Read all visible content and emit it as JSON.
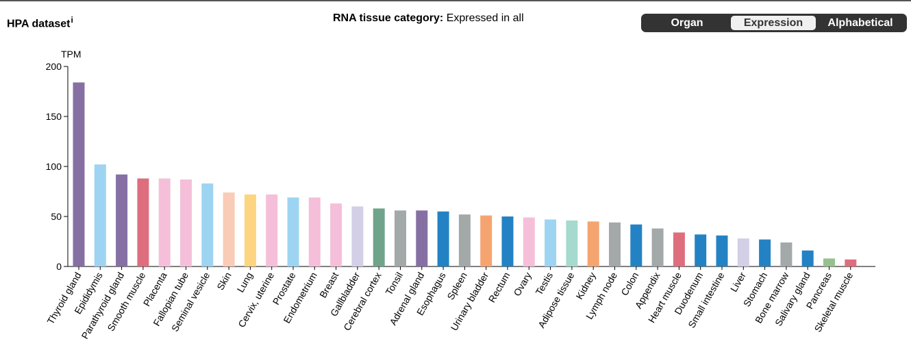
{
  "header": {
    "dataset_title": "HPA dataset",
    "info_marker": "i",
    "category_label": "RNA tissue category:",
    "category_value": "Expressed in all",
    "sort_options": [
      "Organ",
      "Expression",
      "Alphabetical"
    ],
    "active_sort": "Expression"
  },
  "colors": {
    "purple": "#8670a3",
    "light_blue": "#9dd4f2",
    "red": "#de6e7e",
    "pink": "#f5bfd9",
    "peach": "#f9ccb7",
    "yellow": "#fdd47f",
    "lavender": "#d3cfe6",
    "green": "#6fa48a",
    "gray": "#a3a8a9",
    "blue": "#2382c4",
    "orange": "#f5a470",
    "mint": "#a6dace",
    "light_green": "#96c18e"
  },
  "chart_data": {
    "type": "bar",
    "ylabel": "TPM",
    "ylim": [
      0,
      200
    ],
    "yticks": [
      0,
      50,
      100,
      150,
      200
    ],
    "categories": [
      "Thyroid gland",
      "Epididymis",
      "Parathyroid gland",
      "Smooth muscle",
      "Placenta",
      "Fallopian tube",
      "Seminal vesicle",
      "Skin",
      "Lung",
      "Cervix, uterine",
      "Prostate",
      "Endometrium",
      "Breast",
      "Gallbladder",
      "Cerebral cortex",
      "Tonsil",
      "Adrenal gland",
      "Esophagus",
      "Spleen",
      "Urinary bladder",
      "Rectum",
      "Ovary",
      "Testis",
      "Adipose tissue",
      "Kidney",
      "Lymph node",
      "Colon",
      "Appendix",
      "Heart muscle",
      "Duodenum",
      "Small intestine",
      "Liver",
      "Stomach",
      "Bone marrow",
      "Salivary gland",
      "Pancreas",
      "Skeletal muscle"
    ],
    "values": [
      184,
      102,
      92,
      88,
      88,
      87,
      83,
      74,
      72,
      72,
      69,
      69,
      63,
      60,
      58,
      56,
      56,
      55,
      52,
      51,
      50,
      49,
      47,
      46,
      45,
      44,
      42,
      38,
      34,
      32,
      31,
      28,
      27,
      24,
      16,
      8,
      7
    ],
    "bar_colors": [
      "#8670a3",
      "#9dd4f2",
      "#8670a3",
      "#de6e7e",
      "#f5bfd9",
      "#f5bfd9",
      "#9dd4f2",
      "#f9ccb7",
      "#fdd47f",
      "#f5bfd9",
      "#9dd4f2",
      "#f5bfd9",
      "#f5bfd9",
      "#d3cfe6",
      "#6fa48a",
      "#a3a8a9",
      "#8670a3",
      "#2382c4",
      "#a3a8a9",
      "#f5a470",
      "#2382c4",
      "#f5bfd9",
      "#9dd4f2",
      "#a6dace",
      "#f5a470",
      "#a3a8a9",
      "#2382c4",
      "#a3a8a9",
      "#de6e7e",
      "#2382c4",
      "#2382c4",
      "#d3cfe6",
      "#2382c4",
      "#a3a8a9",
      "#2382c4",
      "#96c18e",
      "#de6e7e"
    ]
  }
}
